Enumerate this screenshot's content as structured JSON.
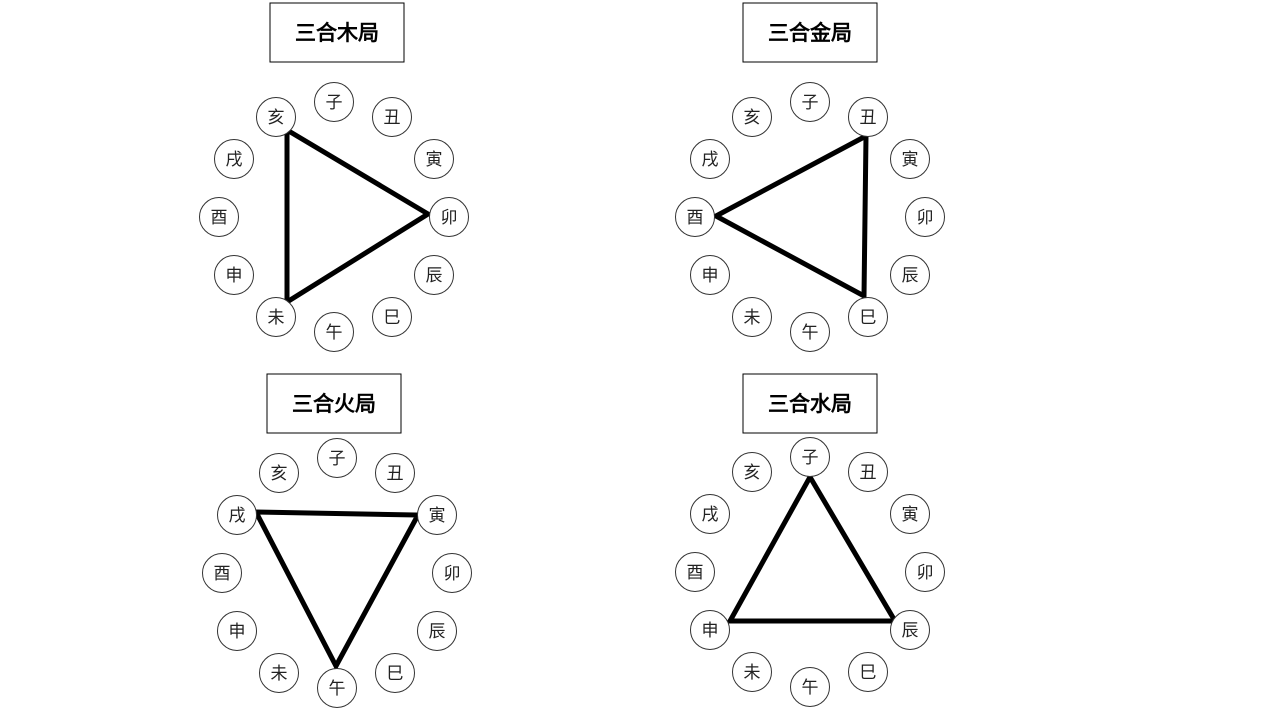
{
  "branches": [
    "子",
    "丑",
    "寅",
    "卯",
    "辰",
    "巳",
    "午",
    "未",
    "申",
    "酉",
    "戌",
    "亥"
  ],
  "diagrams": [
    {
      "title": "三合木局",
      "triangle": [
        "亥",
        "卯",
        "未"
      ]
    },
    {
      "title": "三合金局",
      "triangle": [
        "巳",
        "酉",
        "丑"
      ]
    },
    {
      "title": "三合火局",
      "triangle": [
        "寅",
        "午",
        "戌"
      ]
    },
    {
      "title": "三合水局",
      "triangle": [
        "申",
        "子",
        "辰"
      ]
    }
  ]
}
